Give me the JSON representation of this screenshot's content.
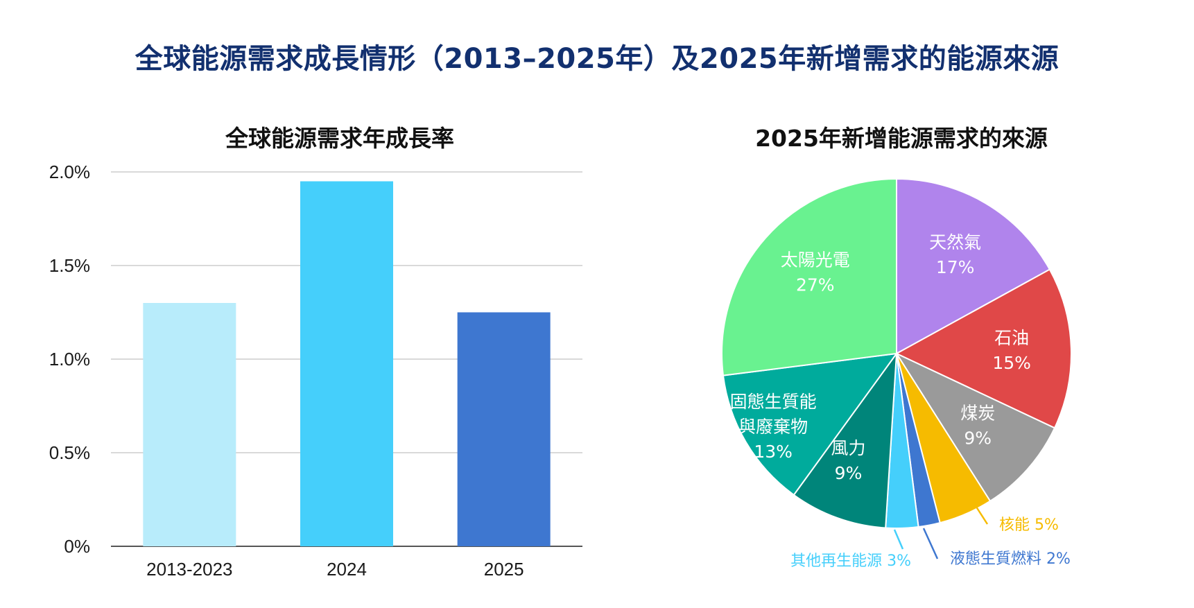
{
  "title": "全球能源需求成長情形（2013–2025年）及2025年新增需求的能源來源",
  "chart_data": [
    {
      "type": "bar",
      "title": "全球能源需求年成長率",
      "categories": [
        "2013-2023",
        "2024",
        "2025"
      ],
      "values": [
        1.3,
        1.95,
        1.25
      ],
      "colors": [
        "#b8ecfb",
        "#45cffb",
        "#3e77d0"
      ],
      "yticks": [
        "0%",
        "0.5%",
        "1.0%",
        "1.5%",
        "2.0%"
      ],
      "ylim": [
        0,
        2.0
      ],
      "unit": "%",
      "grid": true
    },
    {
      "type": "pie",
      "title": "2025年新增能源需求的來源",
      "slices": [
        {
          "name": "天然氣",
          "value": 17,
          "label": "17%",
          "color": "#b084ec"
        },
        {
          "name": "石油",
          "value": 15,
          "label": "15%",
          "color": "#e04848"
        },
        {
          "name": "煤炭",
          "value": 9,
          "label": "9%",
          "color": "#9a9a9a"
        },
        {
          "name": "核能",
          "value": 5,
          "label": "核能 5%",
          "color": "#f6bb00"
        },
        {
          "name": "液態生質燃料",
          "value": 2,
          "label": "液態生質燃料 2%",
          "color": "#3e77d0"
        },
        {
          "name": "其他再生能源",
          "value": 3,
          "label": "其他再生能源 3%",
          "color": "#45cffb"
        },
        {
          "name": "風力",
          "value": 9,
          "label": "9%",
          "color": "#00857a"
        },
        {
          "name": "固態生質能與廢棄物",
          "value": 13,
          "label": "13%",
          "color": "#00ab9c"
        },
        {
          "name": "太陽光電",
          "value": 27,
          "label": "27%",
          "color": "#69f290"
        }
      ],
      "inside_label_lines": {
        "天然氣": [
          "天然氣"
        ],
        "石油": [
          "石油"
        ],
        "煤炭": [
          "煤炭"
        ],
        "風力": [
          "風力"
        ],
        "固態生質能與廢棄物": [
          "固態生質能",
          "與廢棄物"
        ],
        "太陽光電": [
          "太陽光電"
        ]
      }
    }
  ]
}
